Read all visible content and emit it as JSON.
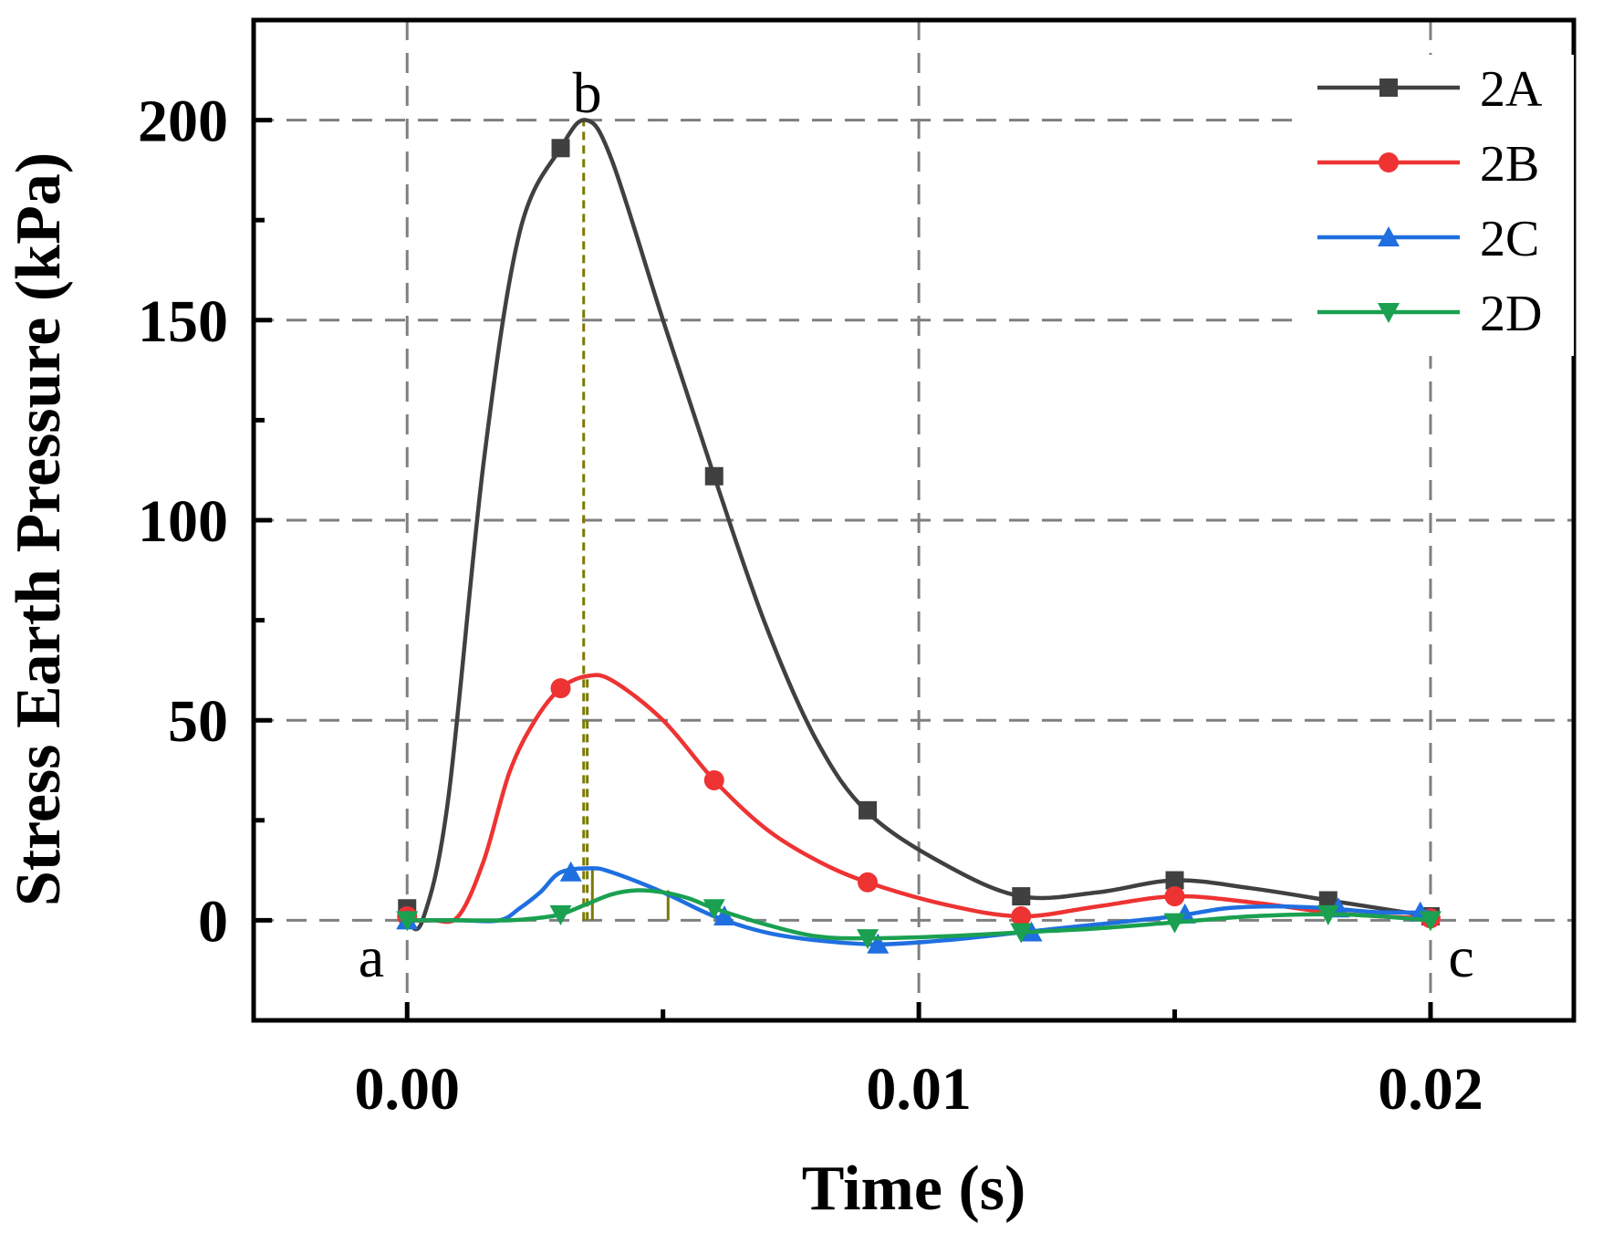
{
  "chart_data": {
    "type": "line",
    "title": "",
    "xlabel": "Time (s)",
    "ylabel": "Stress Earth Pressure (kPa)",
    "xlim": [
      -0.003,
      0.0228
    ],
    "ylim": [
      -25,
      225
    ],
    "xticks": [
      0.0,
      0.01,
      0.02
    ],
    "xtick_labels": [
      "0.00",
      "0.01",
      "0.02"
    ],
    "x_minor_ticks": [
      0.005,
      0.015
    ],
    "yticks": [
      0,
      50,
      100,
      150,
      200
    ],
    "ytick_labels": [
      "0",
      "50",
      "100",
      "150",
      "200"
    ],
    "y_minor_ticks": [
      25,
      75,
      125,
      175
    ],
    "grid": true,
    "legend_position": "top-right",
    "series": [
      {
        "name": "2A",
        "color": "#404040",
        "marker": "square",
        "x": [
          0.0,
          0.0003,
          0.0008,
          0.0015,
          0.0022,
          0.003,
          0.0035,
          0.004,
          0.005,
          0.006,
          0.007,
          0.008,
          0.009,
          0.0105,
          0.012,
          0.0135,
          0.015,
          0.0165,
          0.018,
          0.019,
          0.02
        ],
        "y": [
          0,
          0,
          30,
          115,
          172,
          193,
          200,
          190,
          150,
          111,
          74,
          45,
          27,
          14,
          6,
          7,
          10,
          8,
          5,
          3,
          1
        ],
        "markers_x": [
          0.0,
          0.003,
          0.006,
          0.009,
          0.012,
          0.015,
          0.018,
          0.02
        ],
        "markers_y": [
          3,
          193,
          111,
          27.5,
          6,
          10,
          5,
          1
        ]
      },
      {
        "name": "2B",
        "color": "#ee3333",
        "marker": "circle",
        "x": [
          0.0,
          0.0005,
          0.001,
          0.0015,
          0.002,
          0.0025,
          0.003,
          0.0035,
          0.004,
          0.005,
          0.006,
          0.007,
          0.008,
          0.009,
          0.0105,
          0.012,
          0.0135,
          0.015,
          0.0165,
          0.018,
          0.019,
          0.02
        ],
        "y": [
          0,
          0,
          1,
          15,
          37,
          50,
          58,
          61,
          60,
          50,
          35,
          23,
          15,
          9.5,
          4,
          1,
          3.5,
          6,
          4.5,
          2,
          1,
          0.5
        ],
        "markers_x": [
          0.0,
          0.003,
          0.006,
          0.009,
          0.012,
          0.015,
          0.02
        ],
        "markers_y": [
          1,
          58,
          35,
          9.5,
          1,
          6,
          0.5
        ]
      },
      {
        "name": "2C",
        "color": "#1f6fe0",
        "marker": "triangle-up",
        "x": [
          0.0,
          0.001,
          0.0018,
          0.0022,
          0.0026,
          0.003,
          0.0036,
          0.004,
          0.005,
          0.006,
          0.007,
          0.008,
          0.0092,
          0.0105,
          0.012,
          0.0135,
          0.015,
          0.016,
          0.017,
          0.018,
          0.019,
          0.02
        ],
        "y": [
          0,
          0,
          0,
          3,
          7,
          12,
          13,
          12,
          7,
          1,
          -3,
          -5,
          -6,
          -5,
          -3,
          -1,
          1,
          3,
          3.5,
          3,
          2,
          2
        ],
        "markers_x": [
          0.0,
          0.0032,
          0.0062,
          0.0092,
          0.0122,
          0.0152,
          0.0182,
          0.0198
        ],
        "markers_y": [
          0,
          12,
          1,
          -6,
          -3,
          1.5,
          3,
          2
        ]
      },
      {
        "name": "2D",
        "color": "#1aa050",
        "marker": "triangle-down",
        "x": [
          0.0,
          0.001,
          0.002,
          0.0025,
          0.003,
          0.0035,
          0.004,
          0.0045,
          0.005,
          0.0055,
          0.006,
          0.007,
          0.008,
          0.009,
          0.0105,
          0.012,
          0.0135,
          0.015,
          0.0165,
          0.018,
          0.019,
          0.02
        ],
        "y": [
          0,
          0,
          0,
          0.5,
          1.5,
          4,
          6.5,
          7.5,
          7,
          5.5,
          3,
          -1,
          -4,
          -4.5,
          -4,
          -3,
          -2,
          -0.5,
          1,
          1.5,
          1,
          0
        ],
        "markers_x": [
          0.0,
          0.003,
          0.006,
          0.009,
          0.012,
          0.015,
          0.018,
          0.02
        ],
        "markers_y": [
          0,
          1.5,
          3,
          -4.5,
          -3,
          -0.5,
          1.5,
          0
        ]
      }
    ],
    "reference_lines": [
      {
        "x": 0.00345,
        "y_top": 200,
        "color": "#7a7a00",
        "style": "dashed"
      },
      {
        "x": 0.00352,
        "y_top": 61,
        "color": "#7a7a00",
        "style": "dashed"
      },
      {
        "x": 0.00362,
        "y_top": 13,
        "color": "#7a7a00",
        "style": "solid"
      },
      {
        "x": 0.0051,
        "y_top": 7.5,
        "color": "#7a7a00",
        "style": "solid"
      }
    ],
    "annotations": [
      {
        "text": "a",
        "x": -0.0007,
        "y": -9
      },
      {
        "text": "b",
        "x": 0.00352,
        "y": 207
      },
      {
        "text": "c",
        "x": 0.0206,
        "y": -9
      }
    ]
  }
}
